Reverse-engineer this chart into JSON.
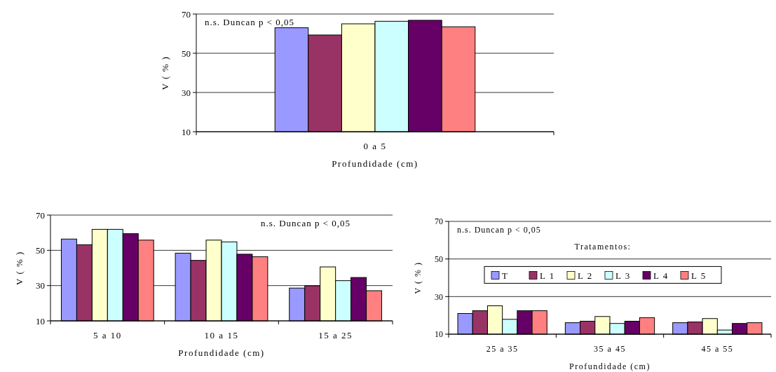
{
  "chart_data": [
    {
      "type": "bar",
      "categories": [
        "0 a 5"
      ],
      "xlabel": "Profundidade (cm)",
      "ylabel": "V ( % )",
      "ylim": [
        10,
        70
      ],
      "yticks": [
        10,
        30,
        50,
        70
      ],
      "grid": "y",
      "legend": false,
      "annotations": [
        "n.s. Duncan p < 0,05"
      ],
      "series": [
        {
          "color": "#9999ff",
          "values": [
            63
          ]
        },
        {
          "color": "#993366",
          "values": [
            59.3
          ]
        },
        {
          "color": "#ffffcc",
          "values": [
            65
          ]
        },
        {
          "color": "#ccffff",
          "values": [
            66.3
          ]
        },
        {
          "color": "#660066",
          "values": [
            66.8
          ]
        },
        {
          "color": "#ff8080",
          "values": [
            63.5
          ]
        }
      ]
    },
    {
      "type": "bar",
      "categories": [
        "5 a 10",
        "10 a 15",
        "15 a 25"
      ],
      "xlabel": "Profundidade (cm)",
      "ylabel": "V ( % )",
      "ylim": [
        10,
        70
      ],
      "yticks": [
        10,
        30,
        50,
        70
      ],
      "grid": "y",
      "legend": false,
      "annotations": [
        "n.s. Duncan p < 0,05"
      ],
      "series": [
        {
          "color": "#9999ff",
          "values": [
            56.4,
            48.4,
            28.6
          ]
        },
        {
          "color": "#993366",
          "values": [
            53.2,
            44.3,
            29.9
          ]
        },
        {
          "color": "#ffffcc",
          "values": [
            61.9,
            55.8,
            40.6
          ]
        },
        {
          "color": "#ccffff",
          "values": [
            61.9,
            54.8,
            32.8
          ]
        },
        {
          "color": "#660066",
          "values": [
            59.5,
            47.8,
            34.6
          ]
        },
        {
          "color": "#ff8080",
          "values": [
            55.8,
            46.4,
            27.1
          ]
        }
      ]
    },
    {
      "type": "bar",
      "categories": [
        "25 a 35",
        "35 a 45",
        "45 a 55"
      ],
      "xlabel": "Profundidade (cm)",
      "ylabel": "V ( % )",
      "ylim": [
        10,
        70
      ],
      "yticks": [
        10,
        30,
        50,
        70
      ],
      "grid": "y",
      "legend": "top",
      "legend_title": "Tratamentos:",
      "annotations": [
        "n.s. Duncan p < 0,05"
      ],
      "series": [
        {
          "name": "T",
          "color": "#9999ff",
          "values": [
            21,
            16.1,
            16.1
          ]
        },
        {
          "name": "L 1",
          "color": "#993366",
          "values": [
            22.5,
            16.9,
            16.5
          ]
        },
        {
          "name": "L 2",
          "color": "#ffffcc",
          "values": [
            25.1,
            19.4,
            18.3
          ]
        },
        {
          "name": "L 3",
          "color": "#ccffff",
          "values": [
            17.9,
            15.7,
            12.2
          ]
        },
        {
          "name": "L 4",
          "color": "#660066",
          "values": [
            22.5,
            16.9,
            15.7
          ]
        },
        {
          "name": "L 5",
          "color": "#ff8080",
          "values": [
            22.5,
            18.8,
            16.1
          ]
        }
      ]
    }
  ]
}
